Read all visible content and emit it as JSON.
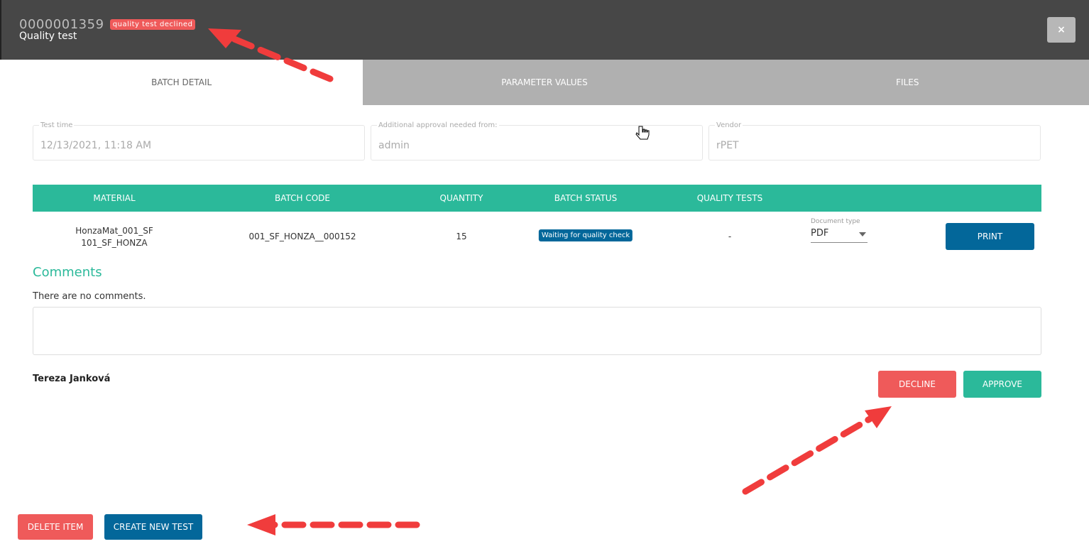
{
  "header": {
    "id": "0000001359",
    "badge": "quality test declined",
    "title": "Quality test",
    "close_label": "×"
  },
  "tabs": [
    {
      "label": "BATCH DETAIL",
      "active": true
    },
    {
      "label": "PARAMETER VALUES"
    },
    {
      "label": "FILES"
    }
  ],
  "fields": [
    {
      "label": "Test time",
      "value": "12/13/2021, 11:18 AM"
    },
    {
      "label": "Additional approval needed from:",
      "value": "admin"
    },
    {
      "label": "Vendor",
      "value": "rPET"
    }
  ],
  "table": {
    "headers": [
      "MATERIAL",
      "BATCH CODE",
      "QUANTITY",
      "BATCH STATUS",
      "QUALITY TESTS"
    ],
    "row": {
      "material_line1": "HonzaMat_001_SF",
      "material_line2": "101_SF_HONZA",
      "batch_code": "001_SF_HONZA__000152",
      "quantity": "15",
      "status": "Waiting for quality check",
      "quality_tests": "-",
      "doc_type_label": "Document type",
      "doc_type_value": "PDF",
      "print_label": "PRINT"
    }
  },
  "comments": {
    "title": "Comments",
    "empty_text": "There are no comments.",
    "textarea_value": "",
    "user": "Tereza Janková",
    "decline_label": "DECLINE",
    "approve_label": "APPROVE"
  },
  "footer": {
    "delete_label": "DELETE ITEM",
    "create_label": "CREATE NEW TEST"
  },
  "colors": {
    "header": "#474747",
    "accent": "#2bb99a",
    "primary": "#03679a",
    "danger": "#ef5a5a",
    "annotation": "#f03c3c"
  }
}
